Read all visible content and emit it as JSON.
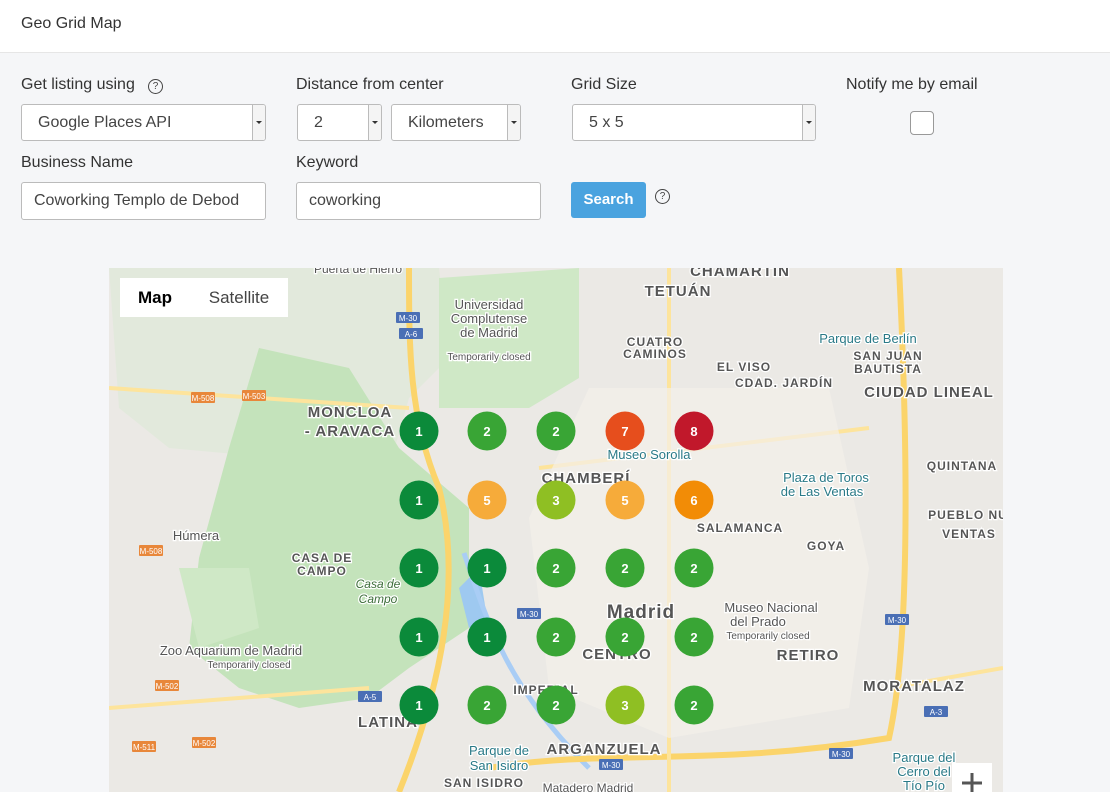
{
  "header": {
    "title": "Geo Grid Map"
  },
  "form": {
    "listing_label": "Get listing using",
    "listing_value": "Google Places API",
    "distance_label": "Distance from center",
    "distance_value": "2",
    "distance_unit": "Kilometers",
    "grid_size_label": "Grid Size",
    "grid_size_value": "5 x 5",
    "notify_label": "Notify me by email",
    "business_label": "Business Name",
    "business_value": "Coworking Templo de Debod",
    "keyword_label": "Keyword",
    "keyword_value": "coworking",
    "search_button": "Search"
  },
  "map": {
    "tabs": [
      "Map",
      "Satellite"
    ],
    "labels": [
      "Puerta de Hierro",
      "Universidad",
      "Complutense",
      "de Madrid",
      "Temporarily closed",
      "CHAMARTÍN",
      "TETUÁN",
      "CUATRO",
      "CAMINOS",
      "Parque de Berlín",
      "SAN JUAN",
      "BAUTISTA",
      "EL VISO",
      "CDAD. JARDÍN",
      "CIUDAD LINEAL",
      "MONCLOA",
      "- ARAVACA",
      "CHAMBERÍ",
      "Museo Sorolla",
      "Plaza de Toros",
      "de Las Ventas",
      "QUINTANA",
      "SALAMANCA",
      "PUEBLO NU",
      "VENTAS",
      "GOYA",
      "Húmera",
      "CASA DE",
      "CAMPO",
      "Casa de",
      "Campo",
      "Madrid",
      "CENTRO",
      "Museo Nacional",
      "del Prado",
      "Temporarily closed",
      "RETIRO",
      "Zoo Aquarium de Madrid",
      "Temporarily closed",
      "MORATALAZ",
      "IMPERIAL",
      "LATINA",
      "ARGANZUELA",
      "Parque de",
      "San Isidro",
      "SAN ISIDRO",
      "Matadero Madrid",
      "Parque del",
      "Cerro del",
      "Tío Pío"
    ],
    "shields": [
      "M-30",
      "A-6",
      "M-508",
      "M-503",
      "M-508",
      "M-502",
      "A-5",
      "M-511",
      "M-502",
      "M-30",
      "M-30",
      "A-3",
      "M-30",
      "M-30"
    ],
    "grid": {
      "rows": [
        [
          1,
          2,
          2,
          7,
          8
        ],
        [
          1,
          5,
          3,
          5,
          6
        ],
        [
          1,
          1,
          2,
          2,
          2
        ],
        [
          1,
          1,
          2,
          2,
          2
        ],
        [
          1,
          2,
          2,
          3,
          2
        ]
      ],
      "rank_colors": {
        "1": "#0b8a3a",
        "2": "#39a535",
        "3": "#8fbf23",
        "5": "#f6ab3a",
        "6": "#f28c06",
        "7": "#e64e1d",
        "8": "#c1182b"
      }
    }
  }
}
